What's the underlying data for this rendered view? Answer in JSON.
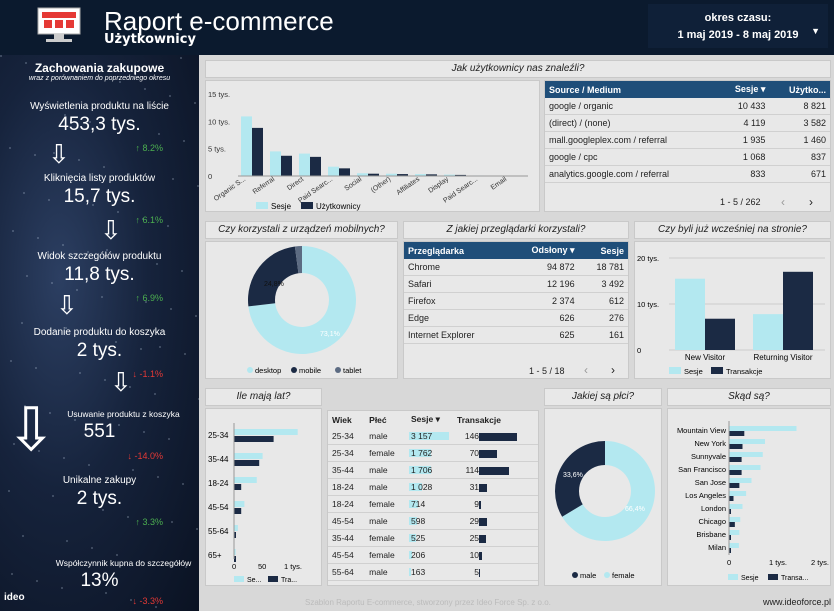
{
  "header": {
    "title": "Raport e-commerce",
    "subtitle": "Użytkownicy",
    "period_label": "okres czasu:",
    "period_value": "1 maj 2019 - 8 maj 2019"
  },
  "sidebar": {
    "heading": "Zachowania zakupowe",
    "subheading": "wraz z porównaniem do poprzedniego okresu",
    "metrics": [
      {
        "label": "Wyświetlenia produktu na liście",
        "value": "453,3 tys.",
        "change": "↑ 8.2%",
        "dir": "up"
      },
      {
        "label": "Kliknięcia listy produktów",
        "value": "15,7 tys.",
        "change": "↑ 6.1%",
        "dir": "up"
      },
      {
        "label": "Widok szczegółów produktu",
        "value": "11,8 tys.",
        "change": "↑ 6.9%",
        "dir": "up"
      },
      {
        "label": "Dodanie produktu do koszyka",
        "value": "2 tys.",
        "change": "↓ -1.1%",
        "dir": "dn"
      },
      {
        "label": "Usuwanie produktu z koszyka",
        "value": "551",
        "change": "↓ -14.0%",
        "dir": "dn"
      },
      {
        "label": "Unikalne zakupy",
        "value": "2 tys.",
        "change": "↑ 3.3%",
        "dir": "up"
      },
      {
        "label": "Współczynnik kupna do szczegółów",
        "value": "13%",
        "change": "↓ -3.3%",
        "dir": "dn"
      }
    ],
    "brand": "ideo"
  },
  "colors": {
    "light": "#b3e8f0",
    "dark": "#1b2a44",
    "header": "#1f4e79"
  },
  "channels": {
    "title": "Jak użytkownicy nas znaleźli?",
    "ytick_labels": [
      "15 tys.",
      "10 tys.",
      "5 tys.",
      "0"
    ],
    "legend": [
      "Sesje",
      "Użytkownicy"
    ]
  },
  "source_table": {
    "headers": [
      "Source / Medium",
      "Sesje ▾",
      "Użytko..."
    ],
    "rows": [
      [
        "google / organic",
        "10 433",
        "8 821"
      ],
      [
        "(direct) / (none)",
        "4 119",
        "3 582"
      ],
      [
        "mall.googleplex.com / referral",
        "1 935",
        "1 460"
      ],
      [
        "google / cpc",
        "1 068",
        "837"
      ],
      [
        "analytics.google.com / referral",
        "833",
        "671"
      ]
    ],
    "pager": "1 - 5 / 262"
  },
  "mobile": {
    "title": "Czy korzystali z urządzeń mobilnych?",
    "legend": [
      "desktop",
      "mobile",
      "tablet"
    ],
    "labels": [
      "24,8%",
      "73,1%"
    ]
  },
  "browsers": {
    "title": "Z jakiej przeglądarki korzystali?",
    "headers": [
      "Przeglądarka",
      "Odsłony ▾",
      "Sesje"
    ],
    "rows": [
      [
        "Chrome",
        "94 872",
        "18 781"
      ],
      [
        "Safari",
        "12 196",
        "3 492"
      ],
      [
        "Firefox",
        "2 374",
        "612"
      ],
      [
        "Edge",
        "626",
        "276"
      ],
      [
        "Internet Explorer",
        "625",
        "161"
      ]
    ],
    "pager": "1 - 5 / 18"
  },
  "returning": {
    "title": "Czy byli już wcześniej na stronie?",
    "ytick_labels": [
      "20 tys.",
      "10 tys.",
      "0"
    ],
    "legend": [
      "Sesje",
      "Transakcje"
    ]
  },
  "age": {
    "title": "Ile mają lat?",
    "tick_labels": [
      "0",
      "50",
      "1 tys."
    ],
    "legend": [
      "Se...",
      "Tra..."
    ]
  },
  "demo_table": {
    "headers": [
      "Wiek",
      "Płeć",
      "Sesje ▾",
      "Transakcje"
    ],
    "rows": [
      {
        "age": "25-34",
        "gender": "male",
        "sessions": "3 157",
        "s": 3157,
        "tx": 146
      },
      {
        "age": "25-34",
        "gender": "female",
        "sessions": "1 762",
        "s": 1762,
        "tx": 70
      },
      {
        "age": "35-44",
        "gender": "male",
        "sessions": "1 706",
        "s": 1706,
        "tx": 114
      },
      {
        "age": "18-24",
        "gender": "male",
        "sessions": "1 028",
        "s": 1028,
        "tx": 31
      },
      {
        "age": "18-24",
        "gender": "female",
        "sessions": "714",
        "s": 714,
        "tx": 9
      },
      {
        "age": "45-54",
        "gender": "male",
        "sessions": "598",
        "s": 598,
        "tx": 29
      },
      {
        "age": "35-44",
        "gender": "female",
        "sessions": "525",
        "s": 525,
        "tx": 25
      },
      {
        "age": "45-54",
        "gender": "female",
        "sessions": "206",
        "s": 206,
        "tx": 10
      },
      {
        "age": "55-64",
        "gender": "male",
        "sessions": "163",
        "s": 163,
        "tx": 5
      }
    ]
  },
  "gender": {
    "title": "Jakiej są płci?",
    "labels": [
      "33,6%",
      "66,4%"
    ],
    "legend": [
      "male",
      "female"
    ]
  },
  "cities": {
    "title": "Skąd są?",
    "tick_labels": [
      "0",
      "1 tys.",
      "2 tys."
    ],
    "legend": [
      "Sesje",
      "Transa..."
    ]
  },
  "footer": {
    "text": "Szablon Raportu E-commerce, stworzony przez Ideo Force Sp. z o.o.",
    "url": "www.ideoforce.pl"
  },
  "chart_data": [
    {
      "type": "bar",
      "title": "Jak użytkownicy nas znaleźli?",
      "categories": [
        "Organic S...",
        "Referral",
        "Direct",
        "Paid Searc...",
        "Social",
        "(Other)",
        "Affiliates",
        "Display",
        "Paid Searc...",
        "Email"
      ],
      "series": [
        {
          "name": "Sesje",
          "values": [
            10900,
            4500,
            4100,
            1700,
            500,
            420,
            350,
            250,
            100,
            40
          ]
        },
        {
          "name": "Użytkownicy",
          "values": [
            8800,
            3700,
            3500,
            1400,
            420,
            350,
            300,
            200,
            80,
            30
          ]
        }
      ],
      "ylim": [
        0,
        15000
      ]
    },
    {
      "type": "pie",
      "title": "Czy korzystali z urządzeń mobilnych?",
      "categories": [
        "desktop",
        "mobile",
        "tablet"
      ],
      "values": [
        73.1,
        24.8,
        2.1
      ]
    },
    {
      "type": "bar",
      "title": "Czy byli już wcześniej na stronie?",
      "categories": [
        "New Visitor",
        "Returning Visitor"
      ],
      "series": [
        {
          "name": "Sesje",
          "values": [
            15500,
            7800
          ]
        },
        {
          "name": "Transakcje",
          "values": [
            6800,
            17000
          ]
        }
      ],
      "ylim": [
        0,
        20000
      ]
    },
    {
      "type": "bar",
      "title": "Ile mają lat?",
      "categories": [
        "25-34",
        "35-44",
        "18-24",
        "45-54",
        "55-64",
        "65+"
      ],
      "series": [
        {
          "name": "Sesje",
          "values": [
            4900,
            2200,
            1750,
            800,
            300,
            130
          ]
        },
        {
          "name": "Transakcje",
          "values": [
            220,
            140,
            40,
            40,
            8,
            4
          ]
        }
      ]
    },
    {
      "type": "pie",
      "title": "Jakiej są płci?",
      "categories": [
        "male",
        "female"
      ],
      "values": [
        33.6,
        66.4
      ]
    },
    {
      "type": "bar",
      "title": "Skąd są?",
      "categories": [
        "Mountain View",
        "New York",
        "Sunnyvale",
        "San Francisco",
        "San Jose",
        "Los Angeles",
        "London",
        "Chicago",
        "Brisbane",
        "Milan"
      ],
      "series": [
        {
          "name": "Sesje",
          "values": [
            1500,
            800,
            750,
            700,
            500,
            380,
            300,
            250,
            230,
            220
          ]
        },
        {
          "name": "Transakcje",
          "values": [
            340,
            300,
            280,
            280,
            230,
            100,
            5,
            130,
            5,
            5
          ]
        }
      ],
      "xlim": [
        0,
        2000
      ]
    }
  ]
}
